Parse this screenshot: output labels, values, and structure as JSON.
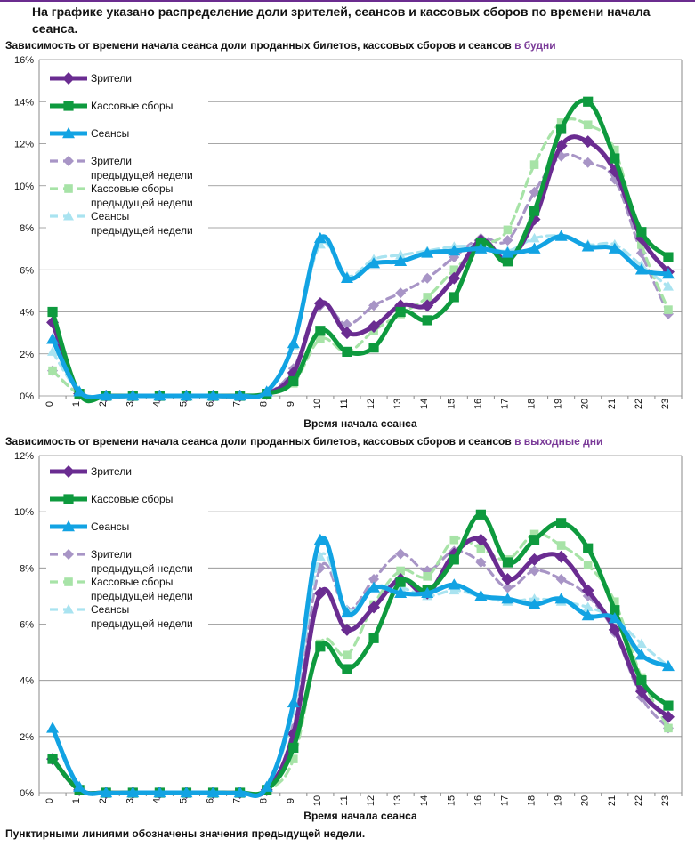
{
  "title": "На графике указано распределение доли зрителей, сеансов и кассовых сборов по времени начала сеанса.",
  "footnote": "Пунктирными линиями обозначены значения предыдущей недели.",
  "chart_data": [
    {
      "type": "line",
      "title_prefix": "Зависимость от времени начала сеанса доли проданных билетов, кассовых сборов и сеансов",
      "title_highlight": " в будни",
      "xlabel": "Время начала сеанса",
      "ylabel": "",
      "x": [
        "0",
        "1",
        "2",
        "3",
        "4",
        "5",
        "6",
        "7",
        "8",
        "9",
        "10",
        "11",
        "12",
        "13",
        "14",
        "15",
        "16",
        "17",
        "18",
        "19",
        "20",
        "21",
        "22",
        "23"
      ],
      "ylim": [
        0,
        16
      ],
      "yticks": [
        0,
        2,
        4,
        6,
        8,
        10,
        12,
        14,
        16
      ],
      "ytick_labels": [
        "0%",
        "2%",
        "4%",
        "6%",
        "8%",
        "10%",
        "12%",
        "14%",
        "16%"
      ],
      "legend": [
        "Зрители",
        "Кассовые сборы",
        "Сеансы",
        "Зрители\nпредыдущей недели",
        "Кассовые сборы\nпредыдущей недели",
        "Сеансы\nпредыдущей недели"
      ],
      "series": [
        {
          "name": "Зрители",
          "color": "#6a2c91",
          "marker": "diamond",
          "dashed": false,
          "values": [
            3.5,
            0.1,
            0,
            0,
            0,
            0,
            0,
            0,
            0.1,
            1.1,
            4.4,
            3.0,
            3.3,
            4.3,
            4.3,
            5.6,
            7.4,
            6.5,
            8.4,
            11.9,
            12.1,
            10.7,
            7.5,
            5.9
          ]
        },
        {
          "name": "Кассовые сборы",
          "color": "#0e9a3e",
          "marker": "square",
          "dashed": false,
          "values": [
            4.0,
            0.1,
            0,
            0,
            0,
            0,
            0,
            0,
            0.1,
            0.7,
            3.1,
            2.1,
            2.3,
            4.0,
            3.6,
            4.7,
            7.3,
            6.4,
            8.8,
            12.7,
            14.0,
            11.3,
            7.8,
            6.6
          ]
        },
        {
          "name": "Сеансы",
          "color": "#12a3e3",
          "marker": "triangle",
          "dashed": false,
          "values": [
            2.7,
            0.2,
            0,
            0,
            0,
            0,
            0,
            0,
            0.2,
            2.5,
            7.5,
            5.6,
            6.3,
            6.4,
            6.8,
            6.9,
            7.0,
            6.8,
            7.0,
            7.6,
            7.1,
            7.0,
            6.0,
            5.8
          ]
        },
        {
          "name": "Зрители\nпредыдущей недели",
          "color": "#a895c6",
          "marker": "diamond",
          "dashed": true,
          "values": [
            1.2,
            0.1,
            0,
            0,
            0,
            0,
            0,
            0,
            0.1,
            1.3,
            4.3,
            3.4,
            4.3,
            4.9,
            5.6,
            6.6,
            7.5,
            7.4,
            9.7,
            11.4,
            11.1,
            10.3,
            6.8,
            3.9
          ]
        },
        {
          "name": "Кассовые сборы\nпредыдущей недели",
          "color": "#a7e3a7",
          "marker": "square",
          "dashed": true,
          "values": [
            1.2,
            0.1,
            0,
            0,
            0,
            0,
            0,
            0,
            0.1,
            0.6,
            2.7,
            2.1,
            3.1,
            3.9,
            4.7,
            6.0,
            7.1,
            7.9,
            11.0,
            13.0,
            12.9,
            11.7,
            7.2,
            4.1
          ]
        },
        {
          "name": "Сеансы\nпредыдущей недели",
          "color": "#a9e3f0",
          "marker": "triangle",
          "dashed": true,
          "values": [
            2.1,
            0.2,
            0,
            0,
            0,
            0,
            0,
            0,
            0.2,
            2.4,
            7.2,
            5.7,
            6.5,
            6.7,
            6.9,
            7.1,
            7.1,
            6.9,
            7.5,
            7.6,
            7.2,
            7.2,
            6.2,
            5.2
          ]
        }
      ]
    },
    {
      "type": "line",
      "title_prefix": "Зависимость от времени начала сеанса доли проданных билетов, кассовых сборов и сеансов",
      "title_highlight": " в выходные дни",
      "xlabel": "Время начала сеанса",
      "ylabel": "",
      "x": [
        "0",
        "1",
        "2",
        "3",
        "4",
        "5",
        "6",
        "7",
        "8",
        "9",
        "10",
        "11",
        "12",
        "13",
        "14",
        "15",
        "16",
        "17",
        "18",
        "19",
        "20",
        "21",
        "22",
        "23"
      ],
      "ylim": [
        0,
        12
      ],
      "yticks": [
        0,
        2,
        4,
        6,
        8,
        10,
        12
      ],
      "ytick_labels": [
        "0%",
        "2%",
        "4%",
        "6%",
        "8%",
        "10%",
        "12%"
      ],
      "legend": [
        "Зрители",
        "Кассовые сборы",
        "Сеансы",
        "Зрители\nпредыдущей недели",
        "Кассовые сборы\nпредыдущей недели",
        "Сеансы\nпредыдущей недели"
      ],
      "series": [
        {
          "name": "Зрители",
          "color": "#6a2c91",
          "marker": "diamond",
          "dashed": false,
          "values": [
            1.2,
            0.1,
            0,
            0,
            0,
            0,
            0,
            0,
            0.1,
            2.1,
            7.1,
            5.8,
            6.6,
            7.6,
            7.1,
            8.5,
            9.0,
            7.6,
            8.3,
            8.4,
            7.2,
            5.8,
            3.6,
            2.7
          ]
        },
        {
          "name": "Кассовые сборы",
          "color": "#0e9a3e",
          "marker": "square",
          "dashed": false,
          "values": [
            1.2,
            0.1,
            0,
            0,
            0,
            0,
            0,
            0,
            0.1,
            1.6,
            5.2,
            4.4,
            5.5,
            7.5,
            7.2,
            8.3,
            9.9,
            8.2,
            9.0,
            9.6,
            8.7,
            6.5,
            4.0,
            3.1
          ]
        },
        {
          "name": "Сеансы",
          "color": "#12a3e3",
          "marker": "triangle",
          "dashed": false,
          "values": [
            2.3,
            0.2,
            0,
            0,
            0,
            0,
            0,
            0,
            0.2,
            3.2,
            9.0,
            6.4,
            7.3,
            7.1,
            7.1,
            7.4,
            7.0,
            6.9,
            6.7,
            6.9,
            6.3,
            6.2,
            4.9,
            4.5
          ]
        },
        {
          "name": "Зрители\nпредыдущей недели",
          "color": "#a895c6",
          "marker": "diamond",
          "dashed": true,
          "values": [
            1.2,
            0.1,
            0,
            0,
            0,
            0,
            0,
            0,
            0.1,
            2.3,
            8.0,
            6.5,
            7.6,
            8.5,
            7.9,
            8.6,
            8.2,
            7.3,
            7.9,
            7.6,
            7.0,
            5.7,
            3.4,
            2.3
          ]
        },
        {
          "name": "Кассовые сборы\nпредыдущей недели",
          "color": "#a7e3a7",
          "marker": "square",
          "dashed": true,
          "values": [
            1.2,
            0.1,
            0,
            0,
            0,
            0,
            0,
            0,
            0.1,
            1.2,
            5.3,
            4.9,
            6.7,
            7.9,
            7.7,
            9.0,
            8.7,
            8.3,
            9.2,
            8.8,
            8.1,
            6.8,
            4.1,
            2.3
          ]
        },
        {
          "name": "Сеансы\nпредыдущей недели",
          "color": "#a9e3f0",
          "marker": "triangle",
          "dashed": true,
          "values": [
            2.3,
            0.2,
            0,
            0,
            0,
            0,
            0,
            0,
            0.2,
            2.9,
            8.4,
            6.5,
            7.3,
            7.3,
            7.0,
            7.2,
            7.0,
            6.8,
            6.9,
            6.8,
            6.6,
            6.2,
            5.3,
            4.5
          ]
        }
      ]
    }
  ]
}
